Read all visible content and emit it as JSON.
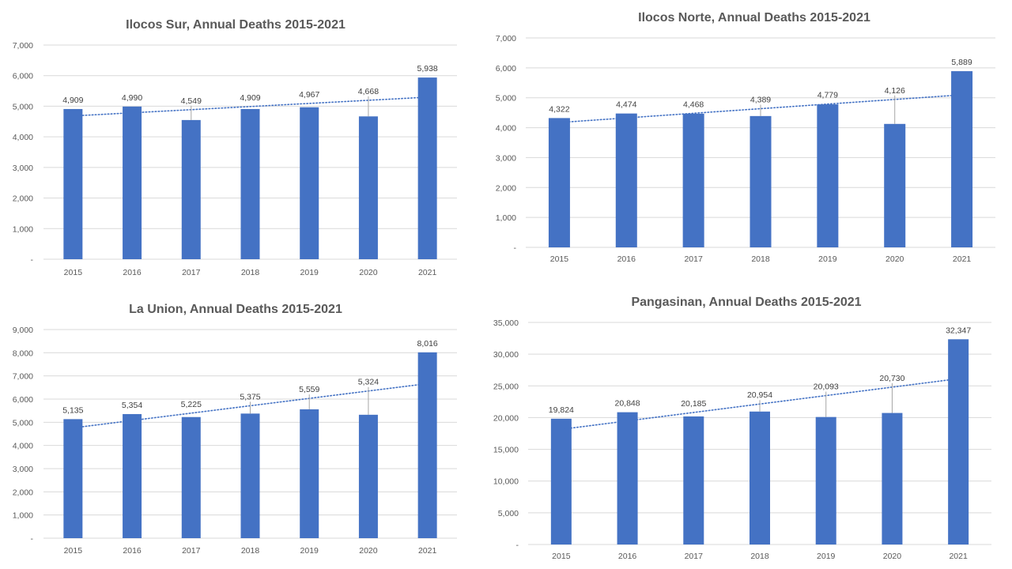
{
  "chart_data": [
    {
      "type": "bar",
      "title": "Ilocos Sur, Annual Deaths 2015-2021",
      "categories": [
        "2015",
        "2016",
        "2017",
        "2018",
        "2019",
        "2020",
        "2021"
      ],
      "values": [
        4909,
        4990,
        4549,
        4909,
        4967,
        4668,
        5938
      ],
      "data_labels": [
        "4,909",
        "4,990",
        "4,549",
        "4,909",
        "4,967",
        "4,668",
        "5,938"
      ],
      "ylim": [
        0,
        7000
      ],
      "yticks": [
        0,
        1000,
        2000,
        3000,
        4000,
        5000,
        6000,
        7000
      ],
      "ytick_labels": [
        "-",
        "1,000",
        "2,000",
        "3,000",
        "4,000",
        "5,000",
        "6,000",
        "7,000"
      ],
      "trendline": "linear, dotted",
      "bar_color": "#4472c4",
      "grid": true
    },
    {
      "type": "bar",
      "title": "Ilocos Norte, Annual Deaths 2015-2021",
      "categories": [
        "2015",
        "2016",
        "2017",
        "2018",
        "2019",
        "2020",
        "2021"
      ],
      "values": [
        4322,
        4474,
        4468,
        4389,
        4779,
        4126,
        5889
      ],
      "data_labels": [
        "4,322",
        "4,474",
        "4,468",
        "4,389",
        "4,779",
        "4,126",
        "5,889"
      ],
      "ylim": [
        0,
        7000
      ],
      "yticks": [
        0,
        1000,
        2000,
        3000,
        4000,
        5000,
        6000,
        7000
      ],
      "ytick_labels": [
        "-",
        "1,000",
        "2,000",
        "3,000",
        "4,000",
        "5,000",
        "6,000",
        "7,000"
      ],
      "trendline": "linear, dotted",
      "bar_color": "#4472c4",
      "grid": true
    },
    {
      "type": "bar",
      "title": "La Union, Annual Deaths 2015-2021",
      "categories": [
        "2015",
        "2016",
        "2017",
        "2018",
        "2019",
        "2020",
        "2021"
      ],
      "values": [
        5135,
        5354,
        5225,
        5375,
        5559,
        5324,
        8016
      ],
      "data_labels": [
        "5,135",
        "5,354",
        "5,225",
        "5,375",
        "5,559",
        "5,324",
        "8,016"
      ],
      "ylim": [
        0,
        9000
      ],
      "yticks": [
        0,
        1000,
        2000,
        3000,
        4000,
        5000,
        6000,
        7000,
        8000,
        9000
      ],
      "ytick_labels": [
        "-",
        "1,000",
        "2,000",
        "3,000",
        "4,000",
        "5,000",
        "6,000",
        "7,000",
        "8,000",
        "9,000"
      ],
      "trendline": "linear, dotted",
      "bar_color": "#4472c4",
      "grid": true
    },
    {
      "type": "bar",
      "title": "Pangasinan, Annual Deaths 2015-2021",
      "categories": [
        "2015",
        "2016",
        "2017",
        "2018",
        "2019",
        "2020",
        "2021"
      ],
      "values": [
        19824,
        20848,
        20185,
        20954,
        20093,
        20730,
        32347
      ],
      "data_labels": [
        "19,824",
        "20,848",
        "20,185",
        "20,954",
        "20,093",
        "20,730",
        "32,347"
      ],
      "ylim": [
        0,
        35000
      ],
      "yticks": [
        0,
        5000,
        10000,
        15000,
        20000,
        25000,
        30000,
        35000
      ],
      "ytick_labels": [
        "-",
        "5,000",
        "10,000",
        "15,000",
        "20,000",
        "25,000",
        "30,000",
        "35,000"
      ],
      "trendline": "linear, dotted",
      "bar_color": "#4472c4",
      "grid": true
    }
  ]
}
